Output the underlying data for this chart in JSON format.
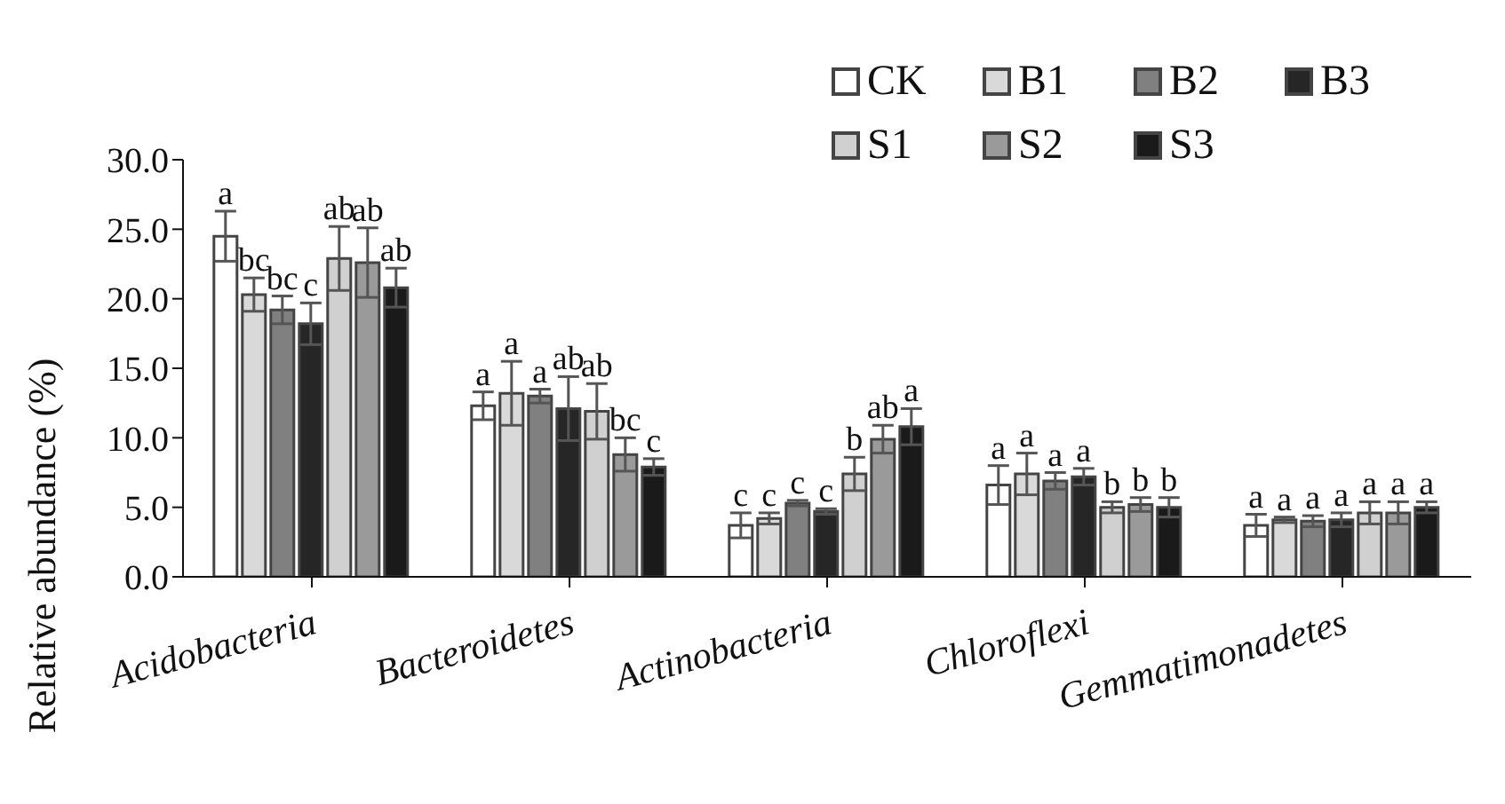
{
  "chart_data": {
    "type": "bar",
    "ylabel": "Relative abundance (%)",
    "categories": [
      "Acidobacteria",
      "Bacteroidetes",
      "Actinobacteria",
      "Chloroflexi",
      "Gemmatimonadetes"
    ],
    "ylim": [
      0,
      30
    ],
    "yticks": [
      {
        "value": 0,
        "label": "0.0"
      },
      {
        "value": 5,
        "label": "5.0"
      },
      {
        "value": 10,
        "label": "10.0"
      },
      {
        "value": 15,
        "label": "15.0"
      },
      {
        "value": 20,
        "label": "20.0"
      },
      {
        "value": 25,
        "label": "25.0"
      },
      {
        "value": 30,
        "label": "30.0"
      }
    ],
    "legend": "top right",
    "grid": false,
    "series": [
      {
        "name": "CK",
        "color": "#ffffff",
        "values": [
          24.5,
          12.3,
          3.7,
          6.6,
          3.7
        ],
        "errors": [
          1.8,
          1.0,
          0.9,
          1.4,
          0.8
        ],
        "value_labels": [
          "a",
          "a",
          "c",
          "a",
          "a"
        ]
      },
      {
        "name": "B1",
        "color": "#d9d9d9",
        "values": [
          20.3,
          13.2,
          4.2,
          7.4,
          4.1
        ],
        "errors": [
          1.2,
          2.3,
          0.4,
          1.5,
          0.2
        ],
        "value_labels": [
          "bc",
          "a",
          "c",
          "a",
          "a"
        ]
      },
      {
        "name": "B2",
        "color": "#808080",
        "values": [
          19.2,
          13.0,
          5.3,
          6.9,
          4.0
        ],
        "errors": [
          1.0,
          0.5,
          0.2,
          0.6,
          0.4
        ],
        "value_labels": [
          "bc",
          "a",
          "c",
          "a",
          "a"
        ]
      },
      {
        "name": "B3",
        "color": "#262626",
        "values": [
          18.2,
          12.1,
          4.7,
          7.2,
          4.1
        ],
        "errors": [
          1.5,
          2.3,
          0.2,
          0.6,
          0.5
        ],
        "value_labels": [
          "c",
          "ab",
          "c",
          "a",
          "a"
        ]
      },
      {
        "name": "S1",
        "color": "#d0d0d0",
        "values": [
          22.9,
          11.9,
          7.4,
          5.0,
          4.6
        ],
        "errors": [
          2.3,
          2.0,
          1.2,
          0.4,
          0.8
        ],
        "value_labels": [
          "ab",
          "ab",
          "b",
          "b",
          "a"
        ]
      },
      {
        "name": "S2",
        "color": "#9a9a9a",
        "values": [
          22.6,
          8.8,
          9.9,
          5.2,
          4.6
        ],
        "errors": [
          2.5,
          1.2,
          1.0,
          0.5,
          0.8
        ],
        "value_labels": [
          "ab",
          "bc",
          "ab",
          "b",
          "a"
        ]
      },
      {
        "name": "S3",
        "color": "#1a1a1a",
        "values": [
          20.8,
          7.9,
          10.8,
          5.0,
          5.0
        ],
        "errors": [
          1.4,
          0.6,
          1.3,
          0.7,
          0.4
        ],
        "value_labels": [
          "ab",
          "c",
          "a",
          "b",
          "a"
        ]
      }
    ]
  }
}
